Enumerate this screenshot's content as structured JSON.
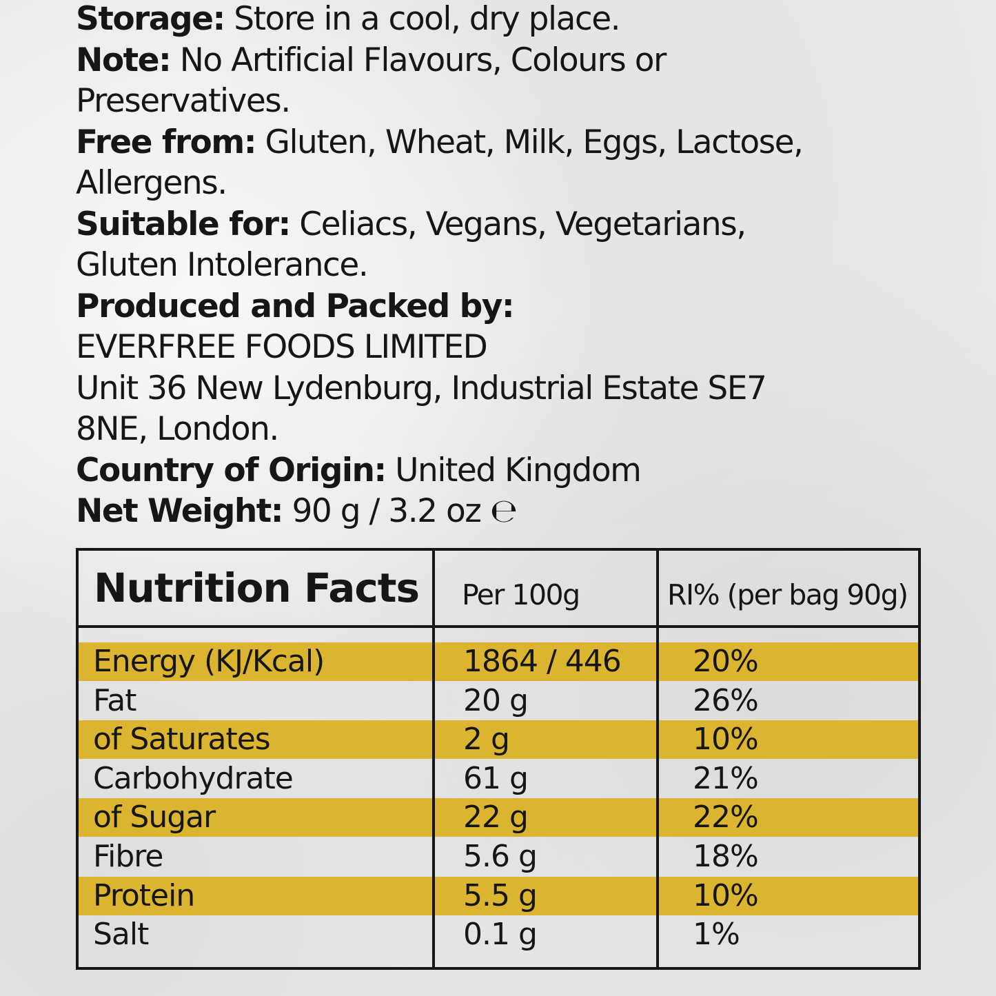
{
  "info": [
    {
      "label": "Storage:",
      "text": "Store in a cool, dry place."
    },
    {
      "label": "Note:",
      "text": "No Artificial Flavours, Colours or"
    },
    {
      "label": "",
      "text": "Preservatives."
    },
    {
      "label": "Free from:",
      "text": "Gluten, Wheat, Milk, Eggs, Lactose,"
    },
    {
      "label": "",
      "text": "Allergens."
    },
    {
      "label": "Suitable for:",
      "text": "Celiacs, Vegans, Vegetarians,"
    },
    {
      "label": "",
      "text": "Gluten Intolerance."
    },
    {
      "label": "Produced and Packed by:",
      "text": ""
    },
    {
      "label": "",
      "text": "EVERFREE FOODS LIMITED"
    },
    {
      "label": "",
      "text": "Unit 36 New Lydenburg, Industrial Estate SE7"
    },
    {
      "label": "",
      "text": "8NE, London."
    },
    {
      "label": "Country of Origin:",
      "text": "United Kingdom"
    },
    {
      "label": "Net Weight:",
      "text": "90 g / 3.2 oz ℮"
    }
  ],
  "nutrition": {
    "title": "Nutrition Facts",
    "col_per100": "Per 100g",
    "col_ri": "RI% (per bag 90g)",
    "highlight_color": "#dbb530",
    "rows": [
      {
        "name": "Energy (KJ/Kcal)",
        "per100": "1864 / 446",
        "ri": "20%",
        "highlight": true
      },
      {
        "name": "Fat",
        "per100": "20 g",
        "ri": "26%",
        "highlight": false
      },
      {
        "name": "of Saturates",
        "per100": "2 g",
        "ri": "10%",
        "highlight": true
      },
      {
        "name": "Carbohydrate",
        "per100": "61 g",
        "ri": "21%",
        "highlight": false
      },
      {
        "name": "of Sugar",
        "per100": "22 g",
        "ri": "22%",
        "highlight": true
      },
      {
        "name": "Fibre",
        "per100": "5.6 g",
        "ri": "18%",
        "highlight": false
      },
      {
        "name": "Protein",
        "per100": "5.5 g",
        "ri": "10%",
        "highlight": true
      },
      {
        "name": "Salt",
        "per100": "0.1 g",
        "ri": "1%",
        "highlight": false
      }
    ]
  }
}
